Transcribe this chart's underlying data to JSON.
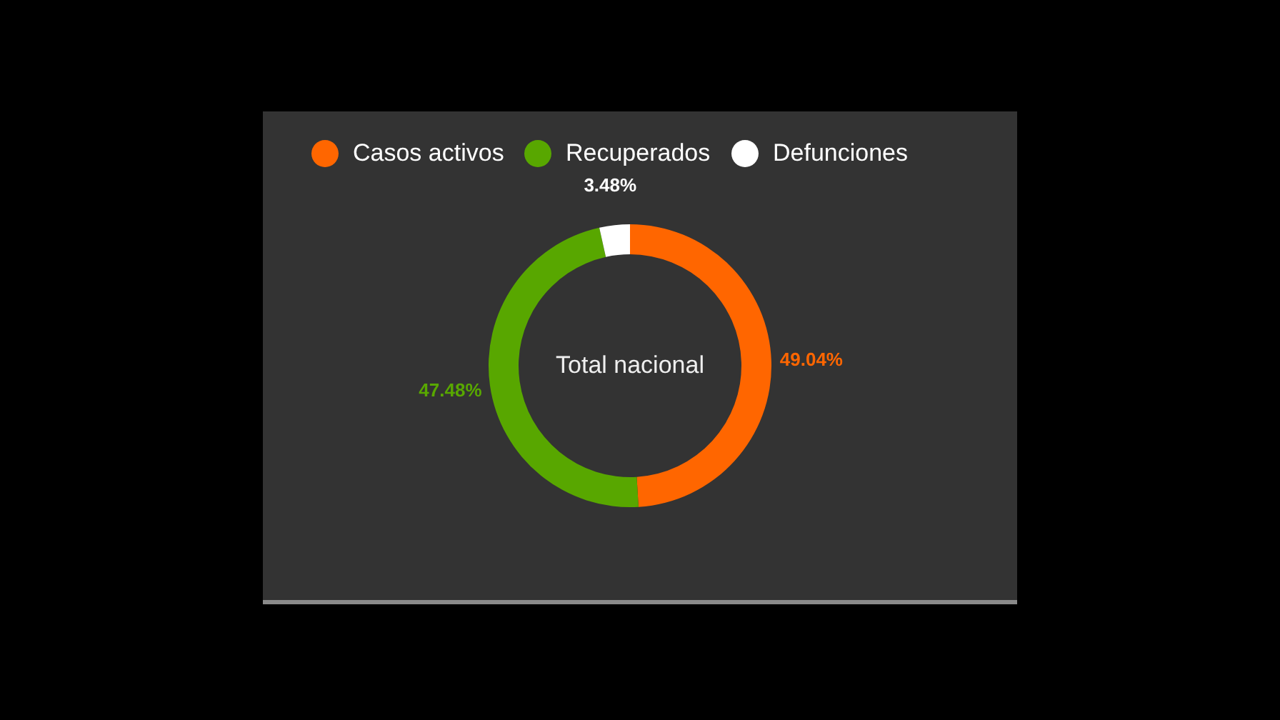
{
  "chart_data": {
    "type": "donut",
    "categories": [
      "Casos activos",
      "Recuperados",
      "Defunciones"
    ],
    "values": [
      49.04,
      47.48,
      3.48
    ],
    "colors": [
      "#ff6600",
      "#58a700",
      "#ffffff"
    ],
    "value_labels": [
      "49.04%",
      "47.48%",
      "3.48%"
    ],
    "annotations": [
      "Total nacional"
    ],
    "legend": "top left"
  }
}
